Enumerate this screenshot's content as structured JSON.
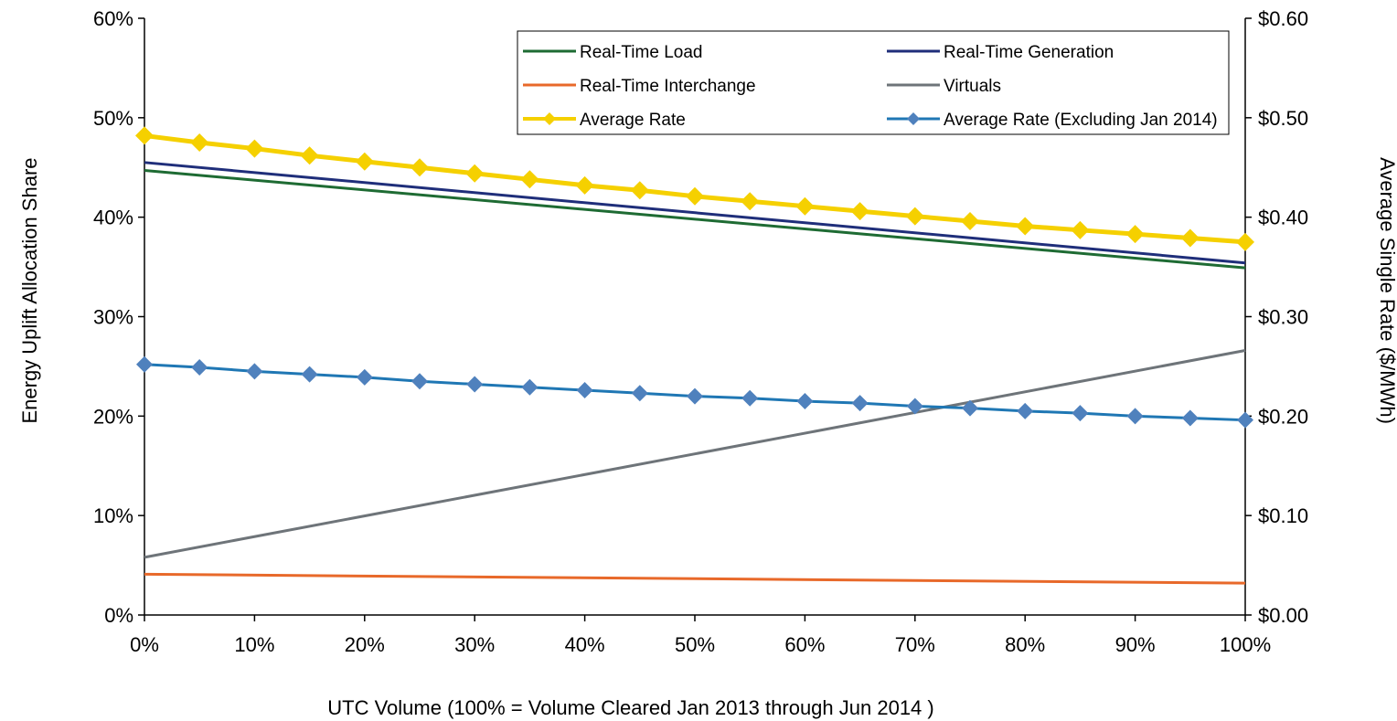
{
  "chart_data": {
    "type": "line",
    "xlabel": "UTC Volume (100% = Volume Cleared Jan 2013 through Jun 2014 )",
    "ylabel_left": "Energy Uplift Allocation Share",
    "ylabel_right": "Average Single Rate ($/MWh)",
    "x_ticks": [
      "0%",
      "10%",
      "20%",
      "30%",
      "40%",
      "50%",
      "60%",
      "70%",
      "80%",
      "90%",
      "100%"
    ],
    "y_left_ticks": [
      "0%",
      "10%",
      "20%",
      "30%",
      "40%",
      "50%",
      "60%"
    ],
    "y_right_ticks": [
      "$0.00",
      "$0.10",
      "$0.20",
      "$0.30",
      "$0.40",
      "$0.50",
      "$0.60"
    ],
    "xlim": [
      0,
      100
    ],
    "ylim_left": [
      0,
      60
    ],
    "ylim_right": [
      0,
      0.6
    ],
    "grid": false,
    "legend_position": "top-right",
    "series": [
      {
        "name": "Real-Time Load",
        "axis": "left",
        "color": "#1e6b33",
        "marker": "none",
        "x": [
          0,
          100
        ],
        "y": [
          44.7,
          34.9
        ]
      },
      {
        "name": "Real-Time Generation",
        "axis": "left",
        "color": "#1f2e7a",
        "marker": "none",
        "x": [
          0,
          100
        ],
        "y": [
          45.5,
          35.4
        ]
      },
      {
        "name": "Real-Time Interchange",
        "axis": "left",
        "color": "#e8692a",
        "marker": "none",
        "x": [
          0,
          100
        ],
        "y": [
          4.1,
          3.2
        ]
      },
      {
        "name": "Virtuals",
        "axis": "left",
        "color": "#6e7479",
        "marker": "none",
        "x": [
          0,
          100
        ],
        "y": [
          5.8,
          26.6
        ]
      },
      {
        "name": "Average Rate",
        "axis": "right",
        "color": "#f5d000",
        "marker": "diamond",
        "x": [
          0,
          5,
          10,
          15,
          20,
          25,
          30,
          35,
          40,
          45,
          50,
          55,
          60,
          65,
          70,
          75,
          80,
          85,
          90,
          95,
          100
        ],
        "y": [
          0.482,
          0.475,
          0.469,
          0.462,
          0.456,
          0.45,
          0.444,
          0.438,
          0.432,
          0.427,
          0.421,
          0.416,
          0.411,
          0.406,
          0.401,
          0.396,
          0.391,
          0.387,
          0.383,
          0.379,
          0.375
        ]
      },
      {
        "name": "Average Rate (Excluding Jan 2014)",
        "axis": "right",
        "color": "#1f77b4",
        "marker": "diamond",
        "x": [
          0,
          5,
          10,
          15,
          20,
          25,
          30,
          35,
          40,
          45,
          50,
          55,
          60,
          65,
          70,
          75,
          80,
          85,
          90,
          95,
          100
        ],
        "y": [
          0.252,
          0.249,
          0.245,
          0.242,
          0.239,
          0.235,
          0.232,
          0.229,
          0.226,
          0.223,
          0.22,
          0.218,
          0.215,
          0.213,
          0.21,
          0.208,
          0.205,
          0.203,
          0.2,
          0.198,
          0.196
        ]
      }
    ]
  }
}
